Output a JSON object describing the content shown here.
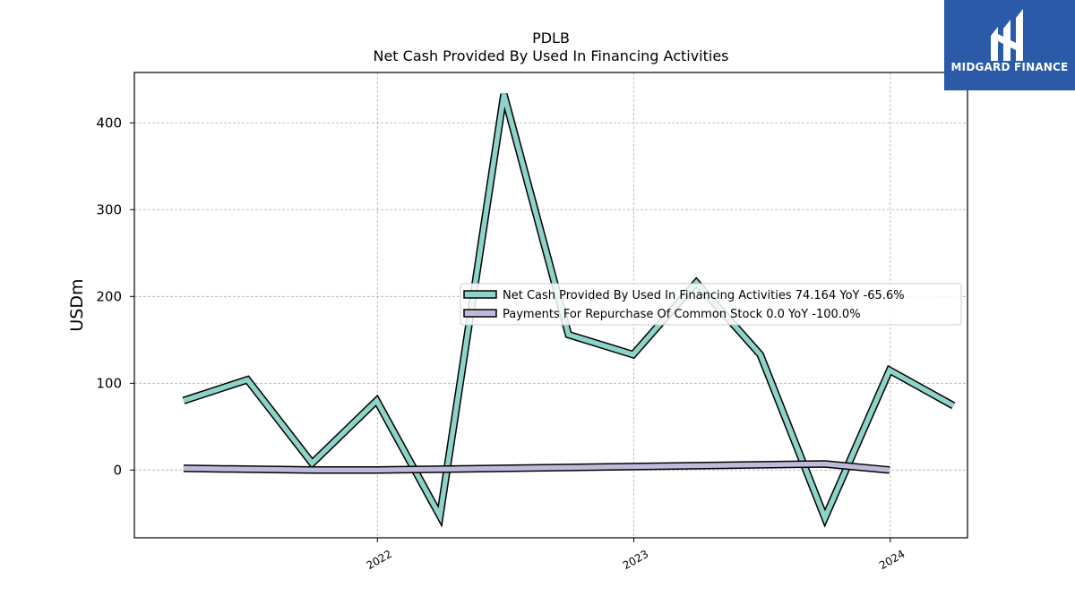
{
  "chart_data": {
    "type": "line",
    "title": "PDLB",
    "subtitle": "Net Cash Provided By Used In Financing Activities",
    "ylabel": "USDm",
    "xlabel": "",
    "ylim": [
      -78,
      458
    ],
    "xlim": [
      "2021-01-20",
      "2024-04-20"
    ],
    "grid": true,
    "legend_position": "center-right",
    "x_ticks": [
      {
        "date": "2022-01-01",
        "label": "2022"
      },
      {
        "date": "2023-01-01",
        "label": "2023"
      },
      {
        "date": "2024-01-01",
        "label": "2024"
      }
    ],
    "y_ticks": [
      0,
      100,
      200,
      300,
      400
    ],
    "series": [
      {
        "name": "Net Cash Provided By Used In Financing Activities",
        "legend_label": "Net Cash Provided By Used In Financing Activities  74.164 YoY -65.6%",
        "color": "#8dd3c7",
        "x": [
          "2021-03-31",
          "2021-06-30",
          "2021-09-30",
          "2021-12-31",
          "2022-03-31",
          "2022-06-30",
          "2022-09-30",
          "2022-12-31",
          "2023-03-31",
          "2023-06-30",
          "2023-09-30",
          "2023-12-31",
          "2024-03-31"
        ],
        "values": [
          80,
          104,
          8,
          80,
          -53,
          433,
          156,
          133,
          216,
          133,
          -55,
          115,
          74.164
        ]
      },
      {
        "name": "Payments For Repurchase Of Common Stock",
        "legend_label": "Payments For Repurchase Of Common Stock  0.0 YoY -100.0%",
        "color": "#bebada",
        "x": [
          "2021-03-31",
          "2021-09-30",
          "2021-12-31",
          "2023-09-30",
          "2023-12-31"
        ],
        "values": [
          2,
          0,
          0,
          7,
          0
        ]
      }
    ]
  },
  "brand": {
    "name": "MIDGARD FINANCE",
    "color": "#2a5aa8",
    "icon": "midgard-logo-icon"
  }
}
